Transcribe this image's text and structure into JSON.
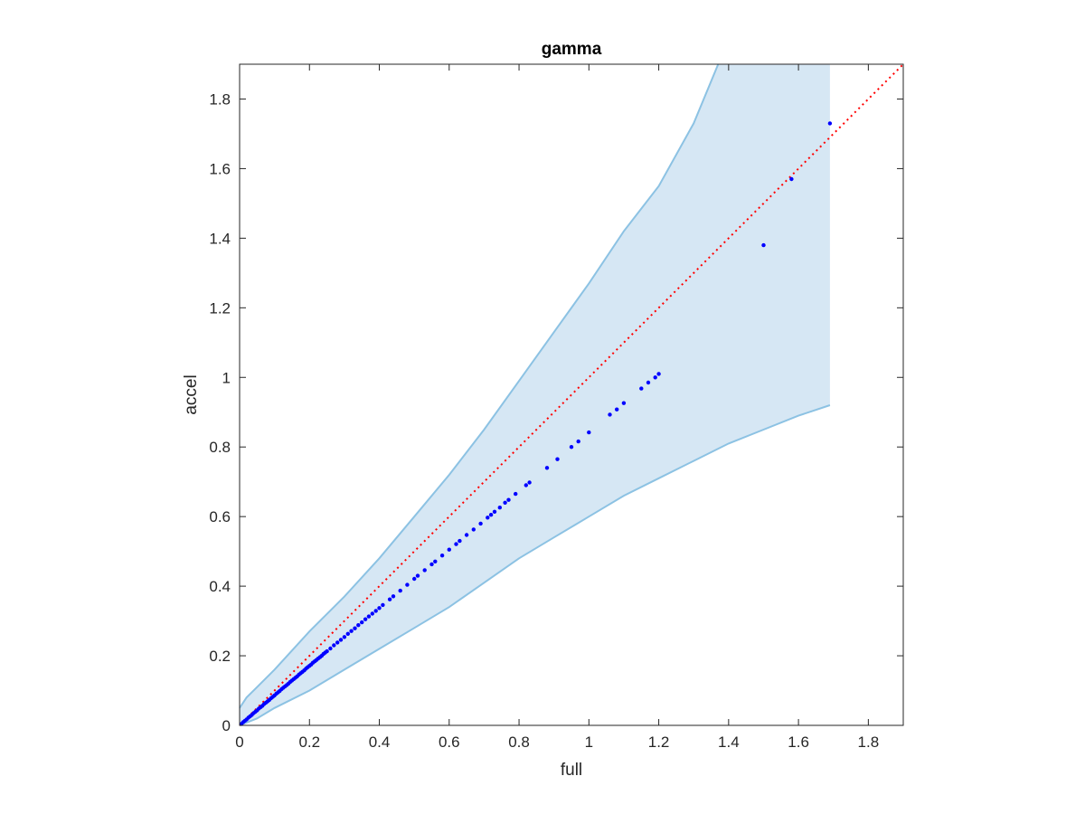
{
  "chart_data": {
    "type": "scatter",
    "title": "gamma",
    "xlabel": "full",
    "ylabel": "accel",
    "xlim": [
      0,
      1.9
    ],
    "ylim": [
      0,
      1.9
    ],
    "x_ticks": [
      0,
      0.2,
      0.4,
      0.6,
      0.8,
      1,
      1.2,
      1.4,
      1.6,
      1.8
    ],
    "x_tick_labels": [
      "0",
      "0.2",
      "0.4",
      "0.6",
      "0.8",
      "1",
      "1.2",
      "1.4",
      "1.6",
      "1.8"
    ],
    "y_ticks": [
      0,
      0.2,
      0.4,
      0.6,
      0.8,
      1,
      1.2,
      1.4,
      1.6,
      1.8
    ],
    "y_tick_labels": [
      "0",
      "0.2",
      "0.4",
      "0.6",
      "0.8",
      "1",
      "1.2",
      "1.4",
      "1.6",
      "1.8"
    ],
    "grid": false,
    "band": {
      "color": "#d6e7f4",
      "edge_color": "#8cc2e3",
      "upper": [
        [
          0,
          0.05
        ],
        [
          0.02,
          0.08
        ],
        [
          0.05,
          0.11
        ],
        [
          0.1,
          0.16
        ],
        [
          0.2,
          0.27
        ],
        [
          0.3,
          0.37
        ],
        [
          0.4,
          0.48
        ],
        [
          0.5,
          0.6
        ],
        [
          0.6,
          0.72
        ],
        [
          0.7,
          0.85
        ],
        [
          0.8,
          0.99
        ],
        [
          0.9,
          1.13
        ],
        [
          1.0,
          1.27
        ],
        [
          1.1,
          1.42
        ],
        [
          1.2,
          1.55
        ],
        [
          1.3,
          1.73
        ],
        [
          1.37,
          1.9
        ],
        [
          1.69,
          1.9
        ]
      ],
      "lower": [
        [
          0,
          0
        ],
        [
          0.05,
          0.02
        ],
        [
          0.1,
          0.05
        ],
        [
          0.2,
          0.1
        ],
        [
          0.3,
          0.16
        ],
        [
          0.4,
          0.22
        ],
        [
          0.5,
          0.28
        ],
        [
          0.6,
          0.34
        ],
        [
          0.7,
          0.41
        ],
        [
          0.8,
          0.48
        ],
        [
          0.9,
          0.54
        ],
        [
          1.0,
          0.6
        ],
        [
          1.1,
          0.66
        ],
        [
          1.2,
          0.71
        ],
        [
          1.3,
          0.76
        ],
        [
          1.4,
          0.81
        ],
        [
          1.5,
          0.85
        ],
        [
          1.6,
          0.89
        ],
        [
          1.69,
          0.92
        ]
      ]
    },
    "reference_line": {
      "from": [
        0,
        0
      ],
      "to": [
        1.9,
        1.9
      ],
      "color": "#ff0000",
      "style": "dotted"
    },
    "point_color": "#0000ff",
    "points": [
      [
        0.005,
        0.004
      ],
      [
        0.01,
        0.009
      ],
      [
        0.015,
        0.013
      ],
      [
        0.02,
        0.017
      ],
      [
        0.025,
        0.022
      ],
      [
        0.03,
        0.026
      ],
      [
        0.035,
        0.03
      ],
      [
        0.04,
        0.035
      ],
      [
        0.045,
        0.039
      ],
      [
        0.05,
        0.043
      ],
      [
        0.055,
        0.048
      ],
      [
        0.06,
        0.052
      ],
      [
        0.065,
        0.056
      ],
      [
        0.07,
        0.061
      ],
      [
        0.075,
        0.065
      ],
      [
        0.08,
        0.069
      ],
      [
        0.085,
        0.073
      ],
      [
        0.09,
        0.078
      ],
      [
        0.095,
        0.082
      ],
      [
        0.1,
        0.086
      ],
      [
        0.105,
        0.091
      ],
      [
        0.11,
        0.095
      ],
      [
        0.115,
        0.099
      ],
      [
        0.12,
        0.104
      ],
      [
        0.125,
        0.108
      ],
      [
        0.13,
        0.112
      ],
      [
        0.135,
        0.116
      ],
      [
        0.14,
        0.12
      ],
      [
        0.145,
        0.125
      ],
      [
        0.15,
        0.129
      ],
      [
        0.155,
        0.133
      ],
      [
        0.16,
        0.137
      ],
      [
        0.165,
        0.141
      ],
      [
        0.17,
        0.146
      ],
      [
        0.175,
        0.15
      ],
      [
        0.18,
        0.154
      ],
      [
        0.185,
        0.158
      ],
      [
        0.19,
        0.163
      ],
      [
        0.195,
        0.167
      ],
      [
        0.2,
        0.171
      ],
      [
        0.205,
        0.175
      ],
      [
        0.21,
        0.18
      ],
      [
        0.215,
        0.184
      ],
      [
        0.22,
        0.188
      ],
      [
        0.225,
        0.192
      ],
      [
        0.23,
        0.196
      ],
      [
        0.235,
        0.2
      ],
      [
        0.24,
        0.205
      ],
      [
        0.245,
        0.209
      ],
      [
        0.25,
        0.213
      ],
      [
        0.26,
        0.221
      ],
      [
        0.27,
        0.23
      ],
      [
        0.28,
        0.238
      ],
      [
        0.29,
        0.246
      ],
      [
        0.3,
        0.254
      ],
      [
        0.31,
        0.263
      ],
      [
        0.32,
        0.271
      ],
      [
        0.33,
        0.279
      ],
      [
        0.34,
        0.288
      ],
      [
        0.35,
        0.296
      ],
      [
        0.36,
        0.305
      ],
      [
        0.37,
        0.313
      ],
      [
        0.38,
        0.321
      ],
      [
        0.39,
        0.329
      ],
      [
        0.4,
        0.337
      ],
      [
        0.41,
        0.346
      ],
      [
        0.43,
        0.362
      ],
      [
        0.44,
        0.371
      ],
      [
        0.46,
        0.387
      ],
      [
        0.48,
        0.404
      ],
      [
        0.5,
        0.421
      ],
      [
        0.51,
        0.43
      ],
      [
        0.53,
        0.446
      ],
      [
        0.55,
        0.463
      ],
      [
        0.56,
        0.471
      ],
      [
        0.58,
        0.488
      ],
      [
        0.6,
        0.505
      ],
      [
        0.62,
        0.521
      ],
      [
        0.63,
        0.53
      ],
      [
        0.65,
        0.547
      ],
      [
        0.67,
        0.563
      ],
      [
        0.69,
        0.58
      ],
      [
        0.71,
        0.597
      ],
      [
        0.72,
        0.605
      ],
      [
        0.73,
        0.614
      ],
      [
        0.745,
        0.626
      ],
      [
        0.76,
        0.64
      ],
      [
        0.77,
        0.648
      ],
      [
        0.79,
        0.665
      ],
      [
        0.82,
        0.69
      ],
      [
        0.83,
        0.698
      ],
      [
        0.88,
        0.74
      ],
      [
        0.91,
        0.765
      ],
      [
        0.95,
        0.8
      ],
      [
        0.97,
        0.816
      ],
      [
        1.0,
        0.842
      ],
      [
        1.06,
        0.893
      ],
      [
        1.08,
        0.908
      ],
      [
        1.1,
        0.926
      ],
      [
        1.15,
        0.968
      ],
      [
        1.17,
        0.985
      ],
      [
        1.19,
        1.0
      ],
      [
        1.2,
        1.01
      ],
      [
        1.5,
        1.38
      ],
      [
        1.58,
        1.57
      ],
      [
        1.69,
        1.73
      ]
    ]
  }
}
